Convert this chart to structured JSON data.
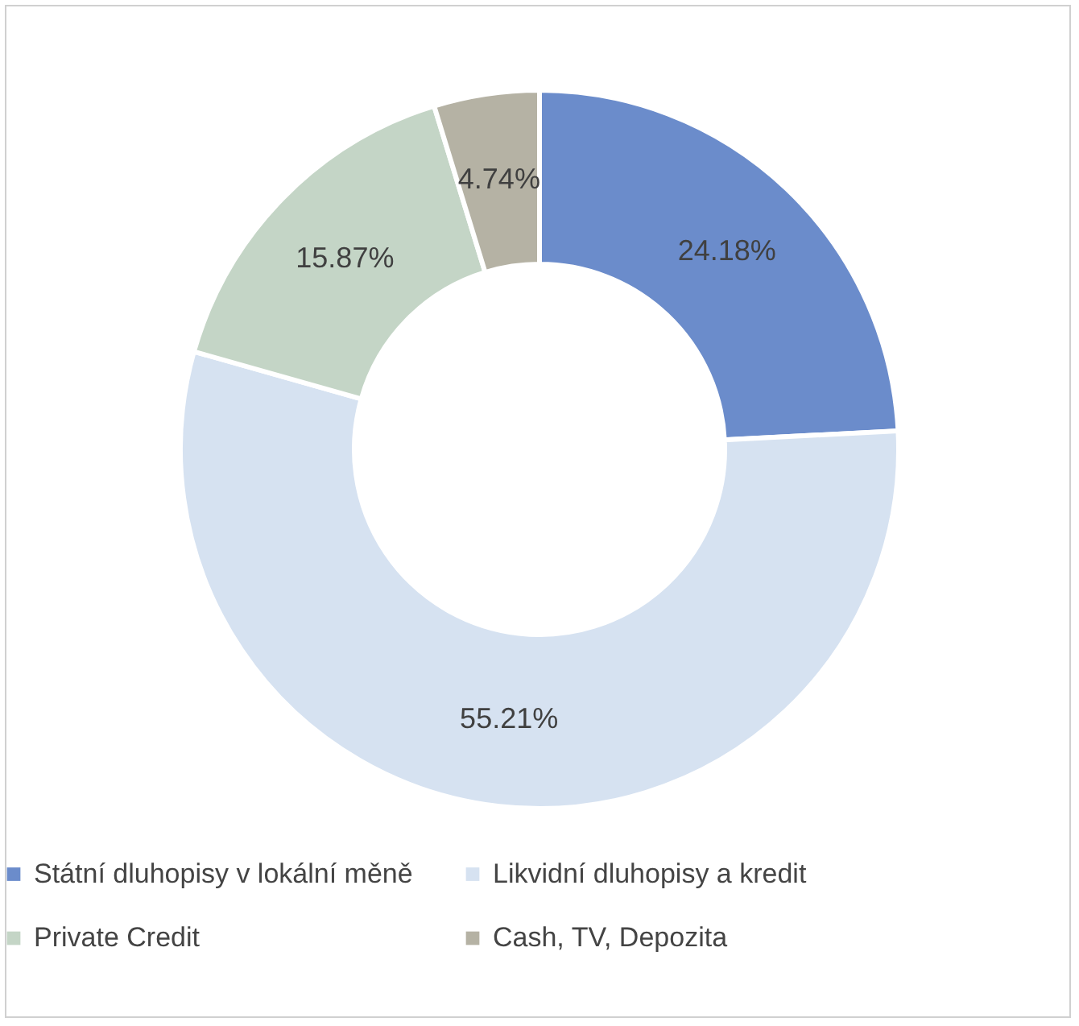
{
  "chart_data": {
    "type": "donut",
    "categories": [
      "Státní dluhopisy v lokální měně",
      "Likvidní dluhopisy a kredit",
      "Private Credit",
      "Cash, TV, Depozita"
    ],
    "values": [
      24.18,
      55.21,
      15.87,
      4.74
    ],
    "colors": [
      "#6b8ccb",
      "#d6e2f1",
      "#c4d5c6",
      "#b5b2a4"
    ],
    "value_labels": [
      "24.18%",
      "55.21%",
      "15.87%",
      "4.74%"
    ],
    "legend": "bottom"
  }
}
